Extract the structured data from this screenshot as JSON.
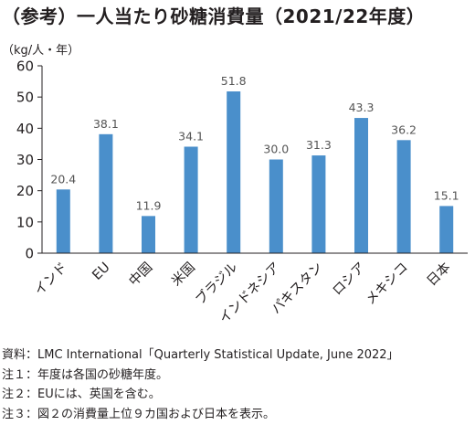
{
  "title": "（参考）一人当たり砂糖消費量（2021/22年度）",
  "chart_data": {
    "type": "bar",
    "unit_label": "（kg/人・年）",
    "categories": [
      "インド",
      "EU",
      "中国",
      "米国",
      "ブラジル",
      "インドネシア",
      "パキスタン",
      "ロシア",
      "メキシコ",
      "日本"
    ],
    "values": [
      20.4,
      38.1,
      11.9,
      34.1,
      51.8,
      30.0,
      31.3,
      43.3,
      36.2,
      15.1
    ],
    "value_labels": [
      "20.4",
      "38.1",
      "11.9",
      "34.1",
      "51.8",
      "30.0",
      "31.3",
      "43.3",
      "36.2",
      "15.1"
    ],
    "yticks": [
      "0",
      "10",
      "20",
      "30",
      "40",
      "50",
      "60"
    ],
    "ylim": [
      0,
      60
    ],
    "bar_color": "#4a8fcb",
    "grid": false,
    "legend": "none"
  },
  "notes": [
    "資料：LMC International「Quarterly Statistical Update, June 2022」",
    "注１：年度は各国の砂糖年度。",
    "注２：EUには、英国を含む。",
    "注３：図２の消費量上位９カ国および日本を表示。"
  ]
}
